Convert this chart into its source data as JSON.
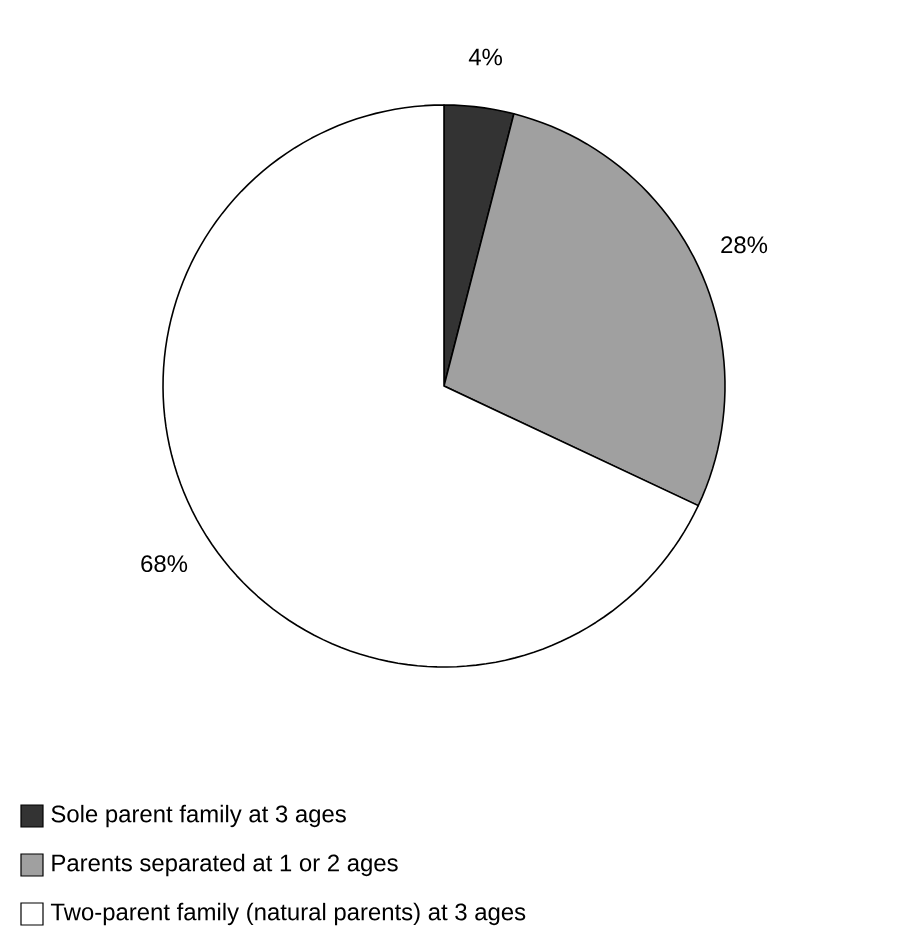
{
  "chart_data": {
    "type": "pie",
    "categories": [
      "Sole parent family at 3 ages",
      "Parents separated at 1 or 2 ages",
      "Two-parent family (natural parents) at 3 ages"
    ],
    "values": [
      4,
      28,
      68
    ],
    "colors": [
      "#333333",
      "#a0a0a0",
      "#ffffff"
    ],
    "value_labels": [
      "4%",
      "28%",
      "68%"
    ],
    "legend": "bottom"
  }
}
